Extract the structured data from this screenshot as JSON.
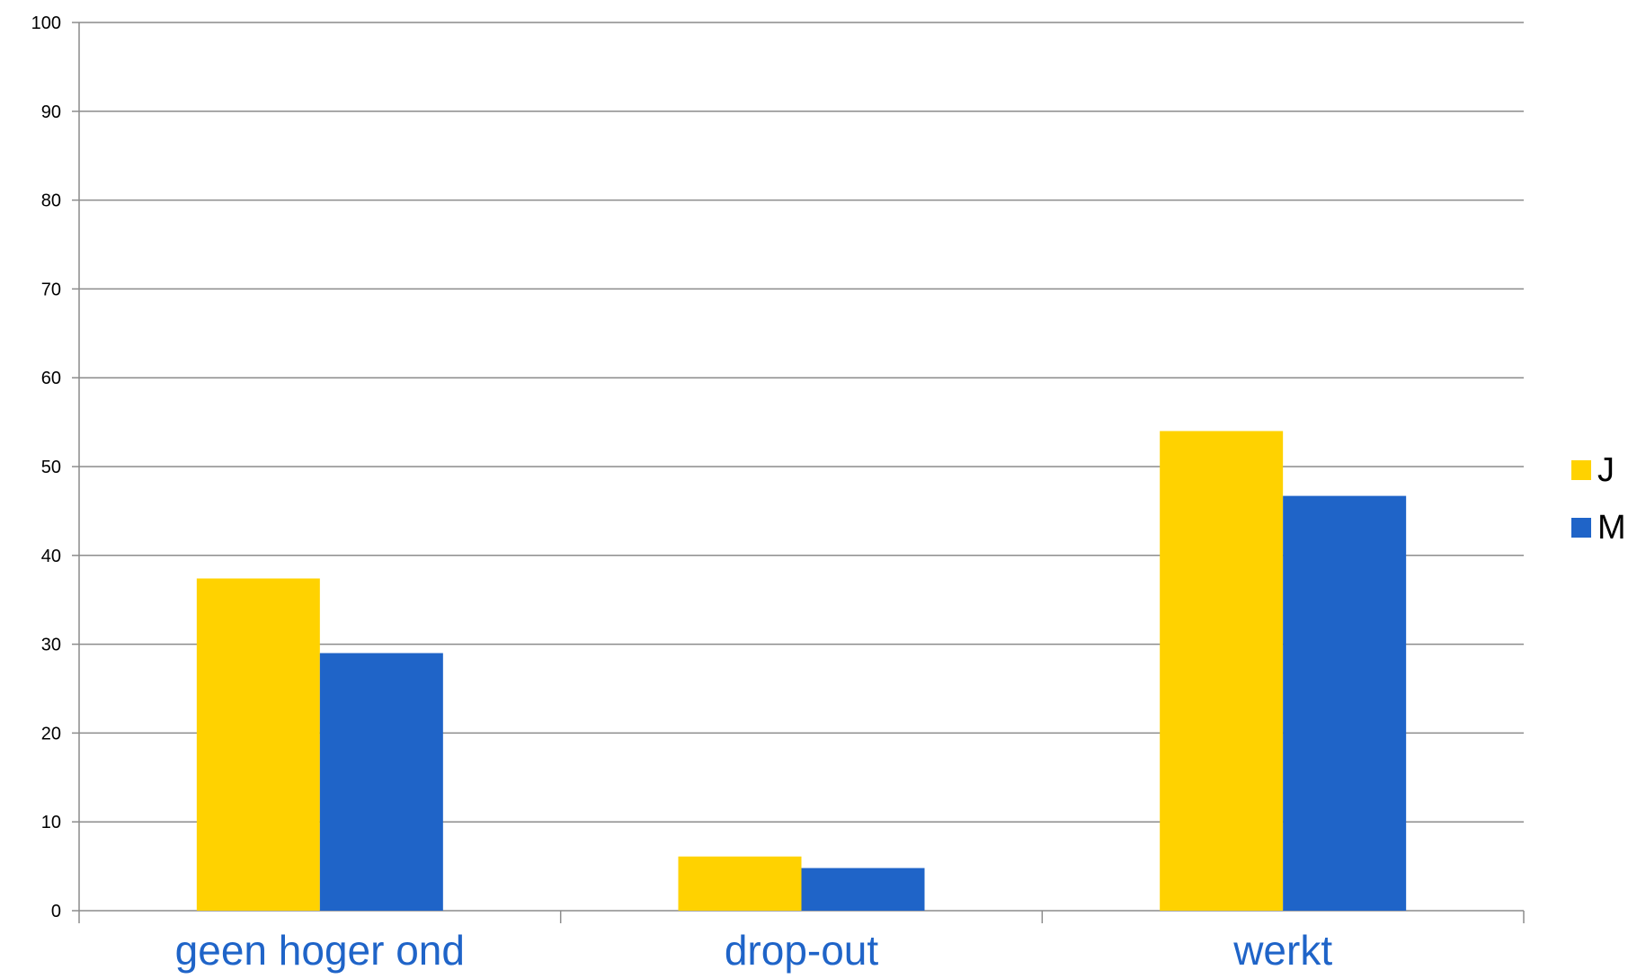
{
  "chart_data": {
    "type": "bar",
    "categories": [
      "geen hoger ond",
      "drop-out",
      "werkt"
    ],
    "series": [
      {
        "name": "J",
        "values": [
          37.4,
          6.1,
          54.0
        ],
        "color": "#FFD200"
      },
      {
        "name": "M",
        "values": [
          29.0,
          4.8,
          46.7
        ],
        "color": "#1F64C8"
      }
    ],
    "title": "",
    "xlabel": "",
    "ylabel": "",
    "ylim": [
      0,
      100
    ],
    "yticks": [
      0,
      10,
      20,
      30,
      40,
      50,
      60,
      70,
      80,
      90,
      100
    ],
    "grid": true,
    "legend": "right",
    "category_label_color": "#1F64C8",
    "gridline_color": "#8C8C8C"
  }
}
